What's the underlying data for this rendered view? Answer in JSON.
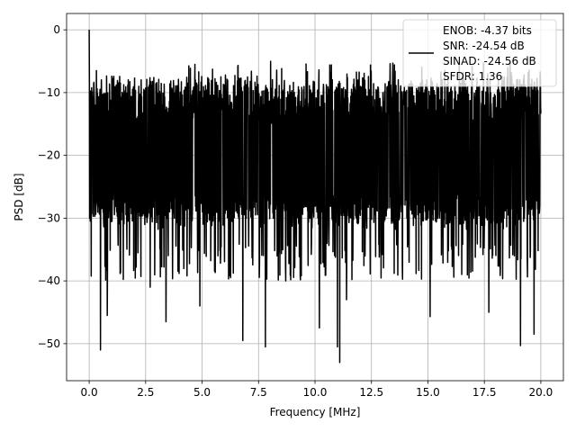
{
  "chart_data": {
    "type": "line",
    "title": "",
    "xlabel": "Frequency [MHz]",
    "ylabel": "PSD [dB]",
    "xlim": [
      -1.0,
      21.0
    ],
    "ylim": [
      -55.9,
      2.6
    ],
    "grid": true,
    "xticks": [
      0,
      2.5,
      5,
      7.5,
      10,
      12.5,
      15,
      17.5,
      20
    ],
    "xtick_labels": [
      "0.0",
      "2.5",
      "5.0",
      "7.5",
      "10.0",
      "12.5",
      "15.0",
      "17.5",
      "20.0"
    ],
    "yticks": [
      0,
      -10,
      -20,
      -30,
      -40,
      -50
    ],
    "ytick_labels": [
      "0",
      "−10",
      "−20",
      "−30",
      "−40",
      "−50"
    ],
    "series": [
      {
        "name": "PSD",
        "color": "#000000",
        "x_range": [
          0,
          20
        ],
        "n_points": 2000,
        "peak": {
          "x": 0.0,
          "y": 0.0
        },
        "typical_upper": -7,
        "typical_lower": -32,
        "notable_dips": [
          [
            0.5,
            -51
          ],
          [
            0.8,
            -45.5
          ],
          [
            2.7,
            -41
          ],
          [
            3.4,
            -46.5
          ],
          [
            4.9,
            -44
          ],
          [
            6.8,
            -49.5
          ],
          [
            7.8,
            -50.5
          ],
          [
            8.7,
            -40
          ],
          [
            10.2,
            -47.5
          ],
          [
            11.0,
            -50.5
          ],
          [
            11.1,
            -53
          ],
          [
            11.4,
            -43
          ],
          [
            15.1,
            -45.7
          ],
          [
            17.7,
            -45
          ],
          [
            19.1,
            -50.3
          ],
          [
            19.7,
            -48.5
          ]
        ]
      }
    ],
    "legend": {
      "placement": "top-right",
      "entries": [
        "ENOB: -4.37 bits",
        "SNR: -24.54 dB",
        "SINAD: -24.56 dB",
        "SFDR: 1.36"
      ]
    }
  }
}
